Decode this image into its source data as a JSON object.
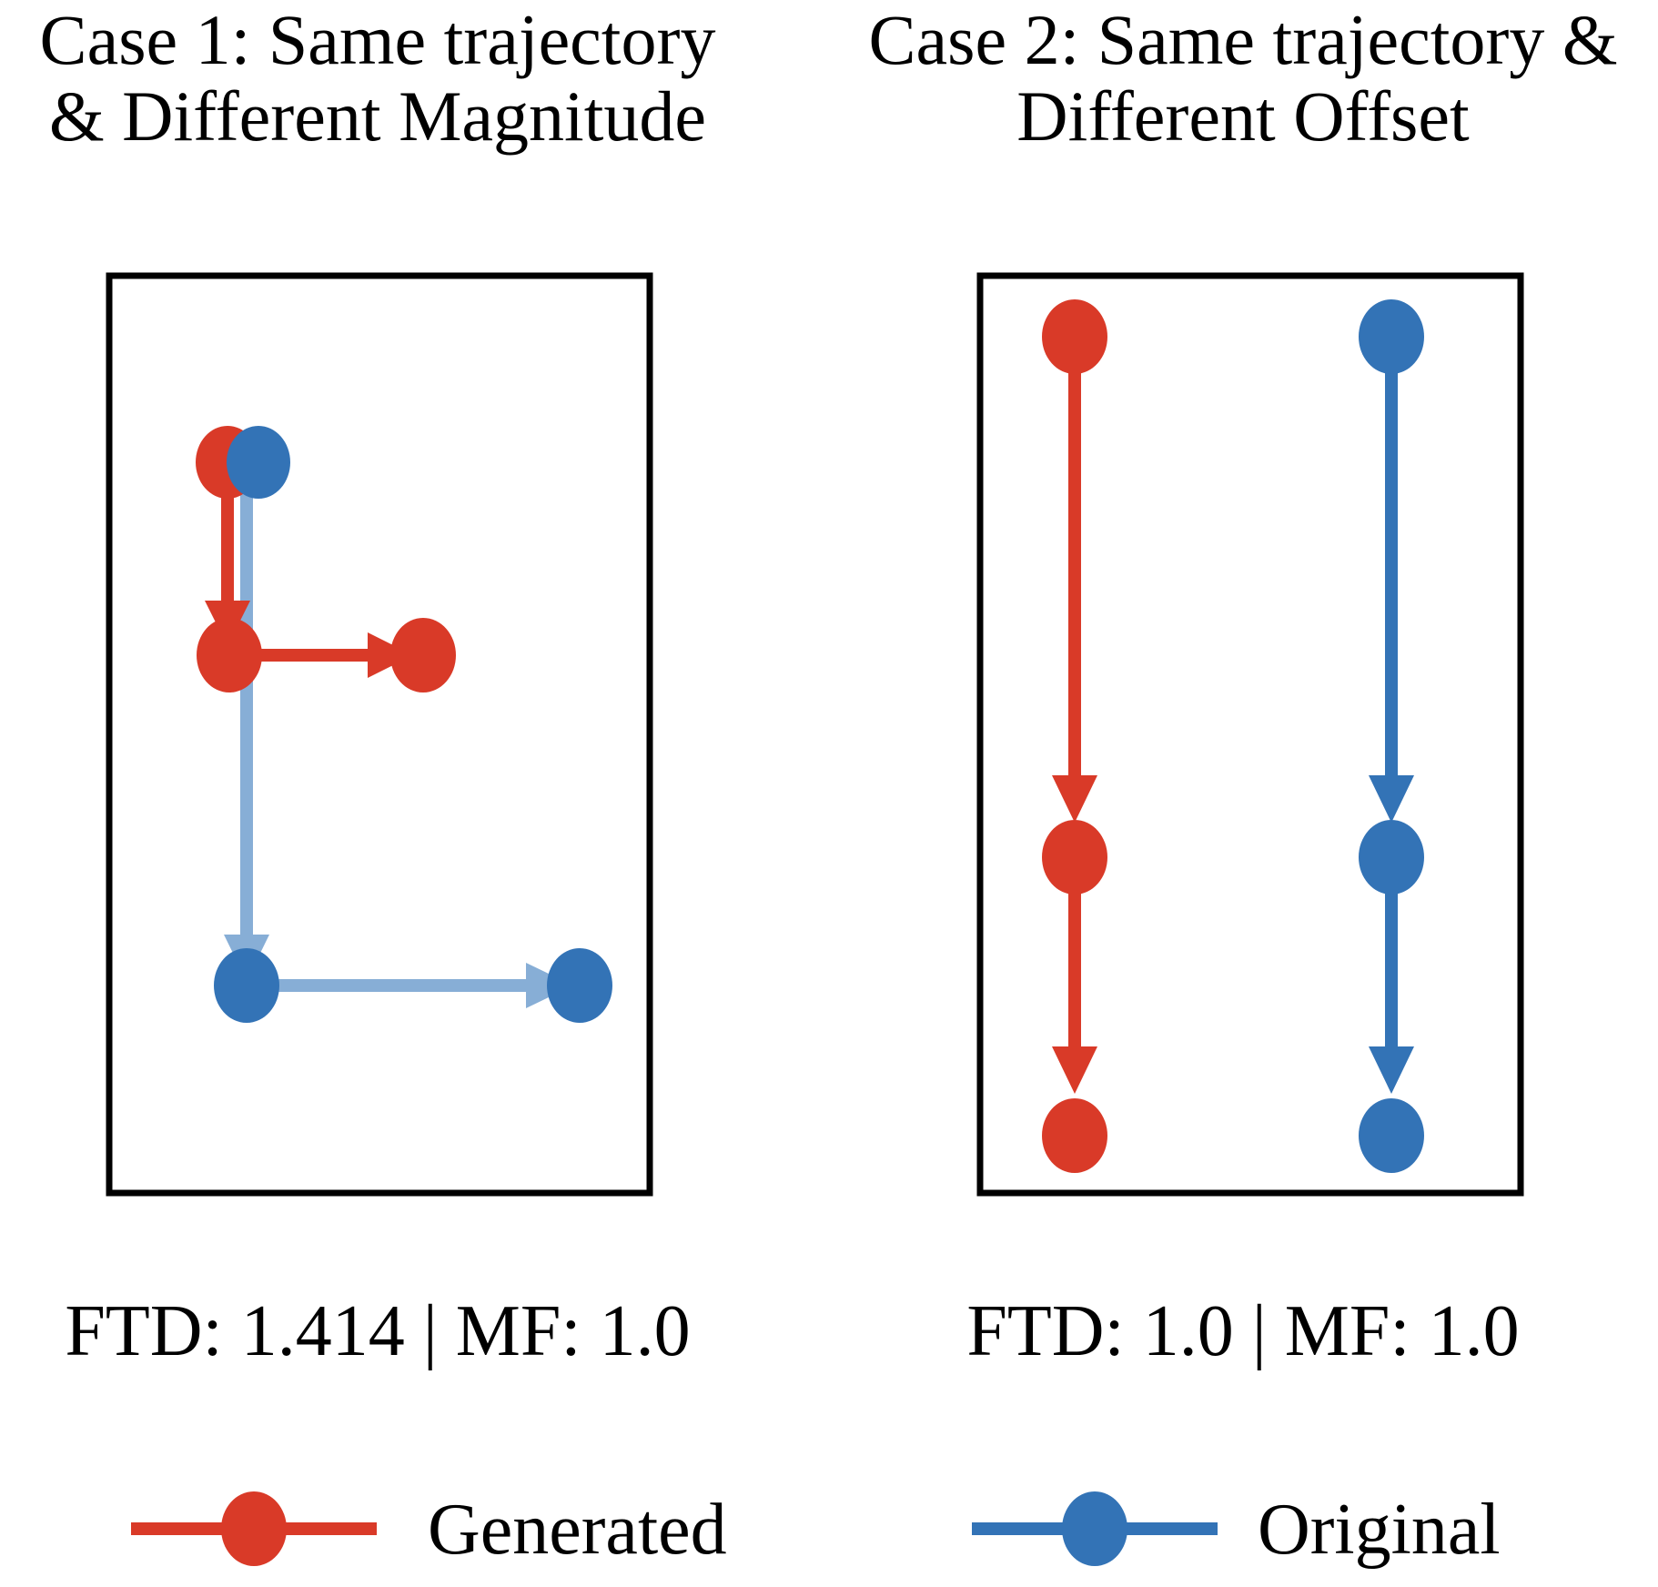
{
  "cases": [
    {
      "title": "Case 1: Same trajectory\n& Different Magnitude",
      "metrics": "FTD: 1.414 | MF: 1.0"
    },
    {
      "title": "Case 2: Same trajectory &\nDifferent Offset",
      "metrics": "FTD: 1.0 | MF: 1.0"
    }
  ],
  "legend": {
    "generated": {
      "label": "Generated",
      "color": "#d93a28"
    },
    "original": {
      "label": "Original",
      "color": "#3373b6"
    }
  },
  "colors": {
    "generated": "#d93a28",
    "original": "#3373b6",
    "original_faded": "#87aed6",
    "frame": "#000000"
  }
}
